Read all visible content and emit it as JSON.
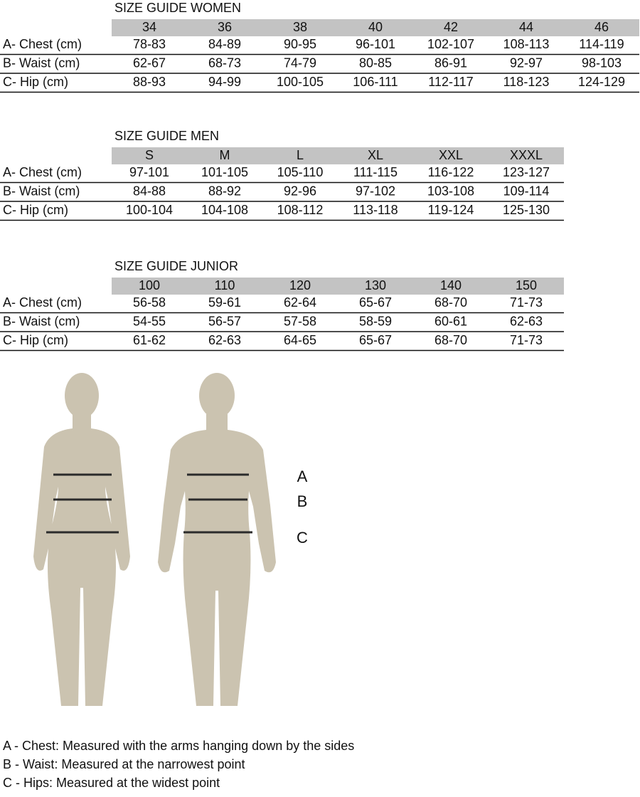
{
  "tables": [
    {
      "title": "SIZE GUIDE WOMEN",
      "headers": [
        "34",
        "36",
        "38",
        "40",
        "42",
        "44",
        "46"
      ],
      "rows": [
        {
          "label": "A- Chest (cm)",
          "cells": [
            "78-83",
            "84-89",
            "90-95",
            "96-101",
            "102-107",
            "108-113",
            "114-119"
          ]
        },
        {
          "label": "B- Waist (cm)",
          "cells": [
            "62-67",
            "68-73",
            "74-79",
            "80-85",
            "86-91",
            "92-97",
            "98-103"
          ]
        },
        {
          "label": "C- Hip (cm)",
          "cells": [
            "88-93",
            "94-99",
            "100-105",
            "106-111",
            "112-117",
            "118-123",
            "124-129"
          ]
        }
      ]
    },
    {
      "title": "SIZE GUIDE MEN",
      "headers": [
        "S",
        "M",
        "L",
        "XL",
        "XXL",
        "XXXL"
      ],
      "rows": [
        {
          "label": "A- Chest (cm)",
          "cells": [
            "97-101",
            "101-105",
            "105-110",
            "111-115",
            "116-122",
            "123-127"
          ]
        },
        {
          "label": "B- Waist (cm)",
          "cells": [
            "84-88",
            "88-92",
            "92-96",
            "97-102",
            "103-108",
            "109-114"
          ]
        },
        {
          "label": "C- Hip (cm)",
          "cells": [
            "100-104",
            "104-108",
            "108-112",
            "113-118",
            "119-124",
            "125-130"
          ]
        }
      ]
    },
    {
      "title": "SIZE GUIDE JUNIOR",
      "headers": [
        "100",
        "110",
        "120",
        "130",
        "140",
        "150"
      ],
      "rows": [
        {
          "label": "A- Chest (cm)",
          "cells": [
            "56-58",
            "59-61",
            "62-64",
            "65-67",
            "68-70",
            "71-73"
          ]
        },
        {
          "label": "B- Waist (cm)",
          "cells": [
            "54-55",
            "56-57",
            "57-58",
            "58-59",
            "60-61",
            "62-63"
          ]
        },
        {
          "label": "C- Hip (cm)",
          "cells": [
            "61-62",
            "62-63",
            "64-65",
            "65-67",
            "68-70",
            "71-73"
          ]
        }
      ]
    }
  ],
  "figure": {
    "markers": [
      "A",
      "B",
      "C"
    ]
  },
  "notes": [
    "A - Chest: Measured with the arms hanging down by the sides",
    "B - Waist: Measured at the narrowest point",
    "C - Hips: Measured at the widest point"
  ]
}
